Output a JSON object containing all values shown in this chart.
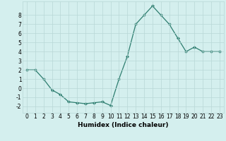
{
  "x": [
    0,
    1,
    2,
    3,
    4,
    5,
    6,
    7,
    8,
    9,
    10,
    11,
    12,
    13,
    14,
    15,
    16,
    17,
    18,
    19,
    20,
    21,
    22,
    23
  ],
  "y": [
    2.0,
    2.0,
    1.0,
    -0.2,
    -0.7,
    -1.5,
    -1.6,
    -1.7,
    -1.6,
    -1.5,
    -1.9,
    1.0,
    3.5,
    7.0,
    8.0,
    9.0,
    8.0,
    7.0,
    5.5,
    4.0,
    4.5,
    4.0,
    4.0,
    4.0
  ],
  "xlabel": "Humidex (Indice chaleur)",
  "xlim": [
    -0.5,
    23.5
  ],
  "ylim": [
    -2.7,
    9.5
  ],
  "yticks": [
    -2,
    -1,
    0,
    1,
    2,
    3,
    4,
    5,
    6,
    7,
    8
  ],
  "xticks": [
    0,
    1,
    2,
    3,
    4,
    5,
    6,
    7,
    8,
    9,
    10,
    11,
    12,
    13,
    14,
    15,
    16,
    17,
    18,
    19,
    20,
    21,
    22,
    23
  ],
  "line_color": "#2d7d6f",
  "marker": "D",
  "bg_color": "#d4efee",
  "grid_color": "#b8d8d6",
  "tick_fontsize": 5.5,
  "xlabel_fontsize": 6.5,
  "linewidth": 0.9,
  "markersize": 2
}
